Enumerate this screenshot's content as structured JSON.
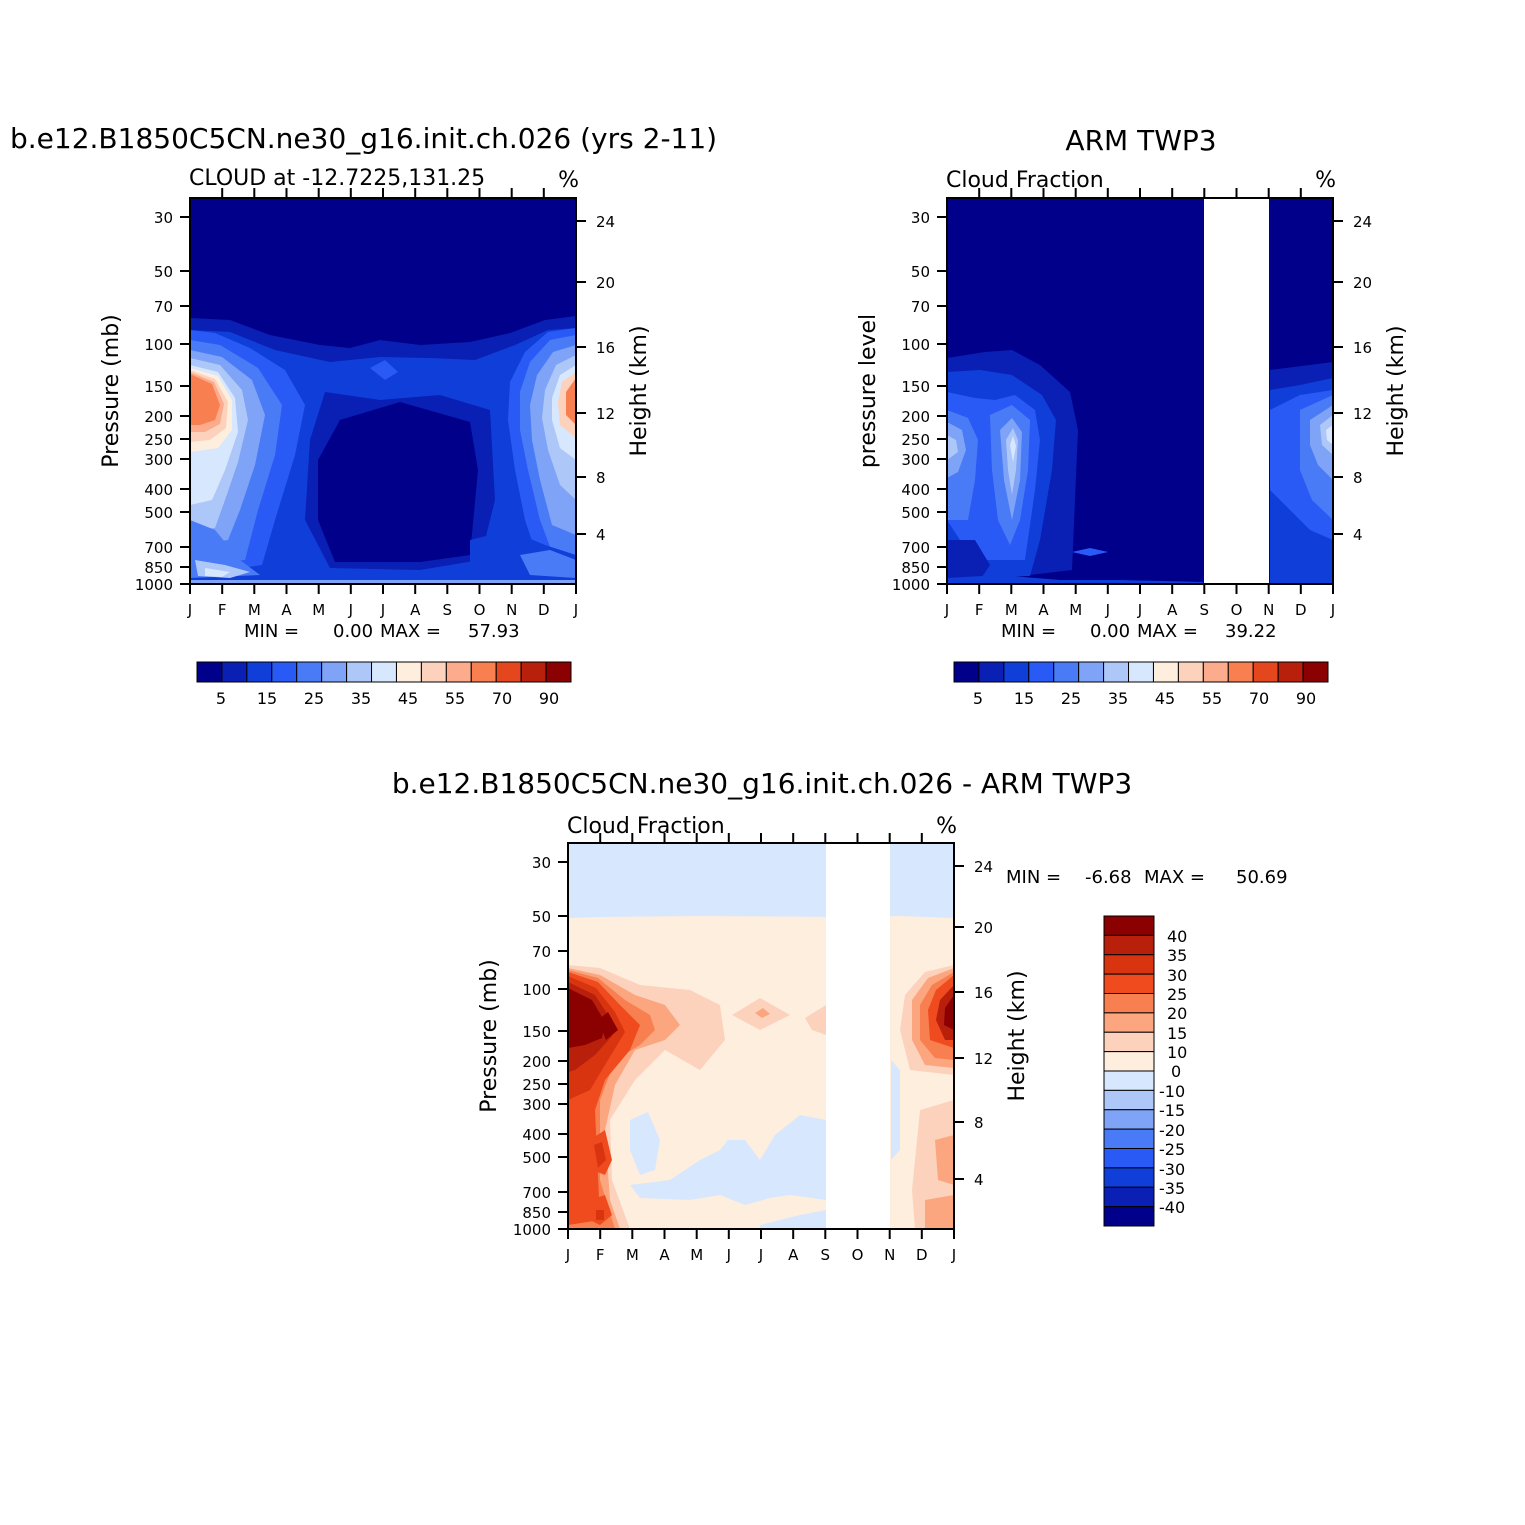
{
  "chart_data": [
    {
      "type": "heatmap",
      "title": "b.e12.B1850C5CN.ne30_g16.init.ch.026 (yrs 2-11)",
      "subtitle_left": "CLOUD at -12.7225,131.25",
      "subtitle_right": "%",
      "ylabel": "Pressure (mb)",
      "ylabel_right": "Height (km)",
      "x_ticks": [
        "J",
        "F",
        "M",
        "A",
        "M",
        "J",
        "J",
        "A",
        "S",
        "O",
        "N",
        "D",
        "J"
      ],
      "y_ticks": [
        "30",
        "50",
        "70",
        "100",
        "150",
        "200",
        "250",
        "300",
        "400",
        "500",
        "700",
        "850",
        "1000"
      ],
      "y_right_ticks": [
        "24",
        "20",
        "16",
        "12",
        "8",
        "4"
      ],
      "y_scale": "log pressure, 1000 mb at bottom",
      "stats": {
        "min_label": "MIN =",
        "min": "0.00",
        "max_label": "MAX =",
        "max": "57.93"
      },
      "colorbar": {
        "orientation": "horizontal",
        "labels": [
          "5",
          "15",
          "25",
          "35",
          "45",
          "55",
          "70",
          "90"
        ],
        "colors": [
          "#00008b",
          "#0a1fb4",
          "#0f3fd8",
          "#2a5af5",
          "#4a7bf7",
          "#7ea3f7",
          "#adc8f8",
          "#d7e7fd",
          "#feeede",
          "#fdd2bd",
          "#fcac8c",
          "#f77f50",
          "#e4471e",
          "#b8200c",
          "#8b0000"
        ]
      },
      "data_summary": "Cloud fraction (%) by month and pressure; high cloud maximum near 150-200 mb in Jan-Feb and Dec reaching about 58%; very low values above 70 mb and in the middle troposphere during May-October."
    },
    {
      "type": "heatmap",
      "title": "ARM TWP3",
      "subtitle_left": "Cloud Fraction",
      "subtitle_right": "%",
      "ylabel": "pressure level",
      "ylabel_right": "Height (km)",
      "x_ticks": [
        "J",
        "F",
        "M",
        "A",
        "M",
        "J",
        "J",
        "A",
        "S",
        "O",
        "N",
        "D",
        "J"
      ],
      "y_ticks": [
        "30",
        "50",
        "70",
        "100",
        "150",
        "200",
        "250",
        "300",
        "400",
        "500",
        "700",
        "850",
        "1000"
      ],
      "y_right_ticks": [
        "24",
        "20",
        "16",
        "12",
        "8",
        "4"
      ],
      "missing_months": [
        "S",
        "O",
        "N"
      ],
      "stats": {
        "min_label": "MIN =",
        "min": "0.00",
        "max_label": "MAX =",
        "max": "39.22"
      },
      "colorbar": {
        "orientation": "horizontal",
        "labels": [
          "5",
          "15",
          "25",
          "35",
          "45",
          "55",
          "70",
          "90"
        ],
        "colors": [
          "#00008b",
          "#0a1fb4",
          "#0f3fd8",
          "#2a5af5",
          "#4a7bf7",
          "#7ea3f7",
          "#adc8f8",
          "#d7e7fd",
          "#feeede",
          "#fdd2bd",
          "#fcac8c",
          "#f77f50",
          "#e4471e",
          "#b8200c",
          "#8b0000"
        ]
      },
      "data_summary": "Observed cloud fraction; values up to about 39% between 150 and 700 mb in Jan-Mar and Dec; near zero elsewhere; no data September to November."
    },
    {
      "type": "heatmap",
      "title": "b.e12.B1850C5CN.ne30_g16.init.ch.026 - ARM TWP3",
      "subtitle_left": "Cloud Fraction",
      "subtitle_right": "%",
      "ylabel": "Pressure (mb)",
      "ylabel_right": "Height (km)",
      "x_ticks": [
        "J",
        "F",
        "M",
        "A",
        "M",
        "J",
        "J",
        "A",
        "S",
        "O",
        "N",
        "D",
        "J"
      ],
      "y_ticks": [
        "30",
        "50",
        "70",
        "100",
        "150",
        "200",
        "250",
        "300",
        "400",
        "500",
        "700",
        "850",
        "1000"
      ],
      "y_right_ticks": [
        "24",
        "20",
        "16",
        "12",
        "8",
        "4"
      ],
      "missing_months": [
        "S",
        "O",
        "N"
      ],
      "stats": {
        "min_label": "MIN =",
        "min": "-6.68",
        "max_label": "MAX =",
        "max": "50.69"
      },
      "colorbar": {
        "orientation": "vertical",
        "labels": [
          "40",
          "35",
          "30",
          "25",
          "20",
          "15",
          "10",
          "0",
          "-10",
          "-15",
          "-20",
          "-25",
          "-30",
          "-35",
          "-40"
        ],
        "colors": [
          "#8b0000",
          "#b8200c",
          "#d8340f",
          "#f04a1f",
          "#f77f50",
          "#fca67f",
          "#fdd2bd",
          "#feeede",
          "#d7e7fd",
          "#adc8f8",
          "#7ea3f7",
          "#4a7bf7",
          "#2a5af5",
          "#0f3fd8",
          "#0a1fb4",
          "#00008b"
        ]
      },
      "data_summary": "Model minus observation difference; largest positive differences (>40%) near 150 mb in Jan-Feb and Dec; small differences of 0 to 10% through most of the domain; slightly negative (0 to -10%) above 50 mb and in mid-levels around Apr-Aug."
    }
  ]
}
